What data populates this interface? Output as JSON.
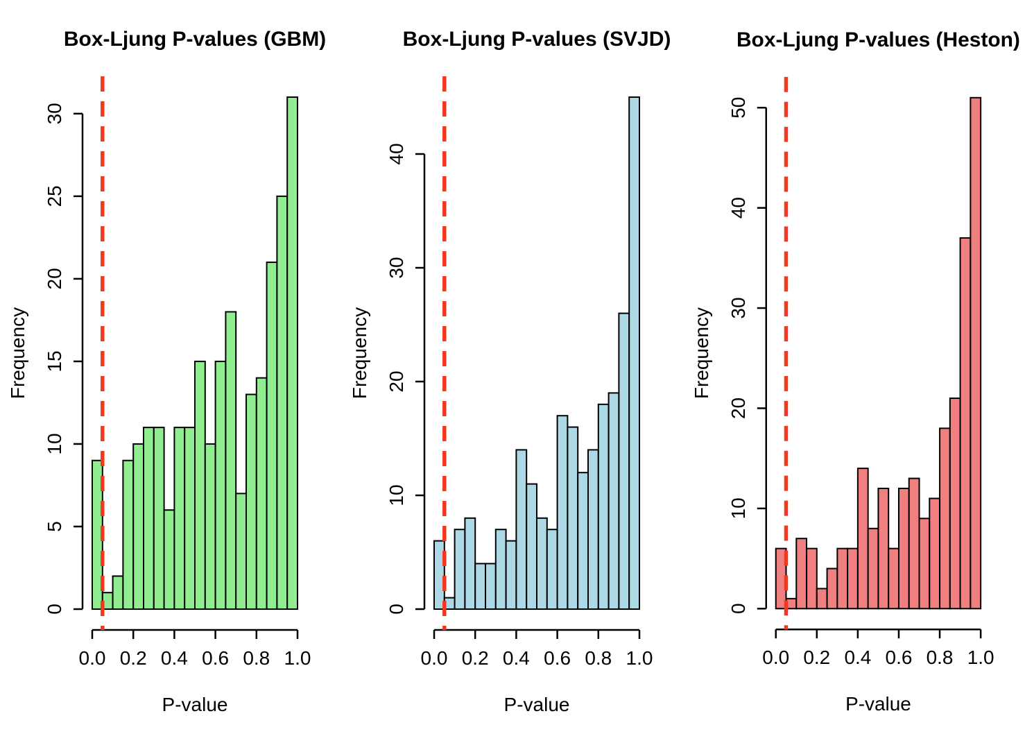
{
  "figure": {
    "background": "#ffffff",
    "kind": "R base-graphics 1x3 histogram figure"
  },
  "chart_data": [
    {
      "type": "bar",
      "subtype": "histogram",
      "title": "Box-Ljung P-values (GBM)",
      "xlabel": "P-value",
      "ylabel": "Frequency",
      "bin_start": 0.0,
      "bin_width": 0.05,
      "values": [
        9,
        1,
        2,
        9,
        10,
        11,
        11,
        6,
        11,
        11,
        15,
        10,
        15,
        18,
        7,
        13,
        14,
        21,
        25,
        31
      ],
      "y_ticks": [
        0,
        5,
        10,
        15,
        20,
        25,
        30
      ],
      "x_tick_values": [
        0.0,
        0.2,
        0.4,
        0.6,
        0.8,
        1.0
      ],
      "x_tick_labels": [
        "0.0",
        "0.2",
        "0.4",
        "0.6",
        "0.8",
        "1.0"
      ],
      "xlim": [
        0,
        1
      ],
      "ylim": [
        0,
        31
      ],
      "grid": false,
      "legend": null,
      "bar_color": "#90EE90",
      "bar_stroke": "#000000",
      "vline_x": 0.05,
      "vline_color": "#F5371E",
      "vline_style": "dashed"
    },
    {
      "type": "bar",
      "subtype": "histogram",
      "title": "Box-Ljung P-values (SVJD)",
      "xlabel": "P-value",
      "ylabel": "Frequency",
      "bin_start": 0.0,
      "bin_width": 0.05,
      "values": [
        6,
        1,
        7,
        8,
        4,
        4,
        7,
        6,
        14,
        11,
        8,
        7,
        17,
        16,
        12,
        14,
        18,
        19,
        26,
        45
      ],
      "y_ticks": [
        0,
        10,
        20,
        30,
        40
      ],
      "x_tick_values": [
        0.0,
        0.2,
        0.4,
        0.6,
        0.8,
        1.0
      ],
      "x_tick_labels": [
        "0.0",
        "0.2",
        "0.4",
        "0.6",
        "0.8",
        "1.0"
      ],
      "xlim": [
        0,
        1
      ],
      "ylim": [
        0,
        45
      ],
      "grid": false,
      "legend": null,
      "bar_color": "#ADD8E6",
      "bar_stroke": "#000000",
      "vline_x": 0.05,
      "vline_color": "#F5371E",
      "vline_style": "dashed"
    },
    {
      "type": "bar",
      "subtype": "histogram",
      "title": "Box-Ljung P-values (Heston)",
      "xlabel": "P-value",
      "ylabel": "Frequency",
      "bin_start": 0.0,
      "bin_width": 0.05,
      "values": [
        6,
        1,
        7,
        6,
        2,
        4,
        6,
        6,
        14,
        8,
        12,
        6,
        12,
        13,
        9,
        11,
        18,
        21,
        37,
        51
      ],
      "y_ticks": [
        0,
        10,
        20,
        30,
        40,
        50
      ],
      "x_tick_values": [
        0.0,
        0.2,
        0.4,
        0.6,
        0.8,
        1.0
      ],
      "x_tick_labels": [
        "0.0",
        "0.2",
        "0.4",
        "0.6",
        "0.8",
        "1.0"
      ],
      "xlim": [
        0,
        1
      ],
      "ylim": [
        0,
        51
      ],
      "grid": false,
      "legend": null,
      "bar_color": "#F08080",
      "bar_stroke": "#000000",
      "vline_x": 0.05,
      "vline_color": "#F5371E",
      "vline_style": "dashed"
    }
  ]
}
